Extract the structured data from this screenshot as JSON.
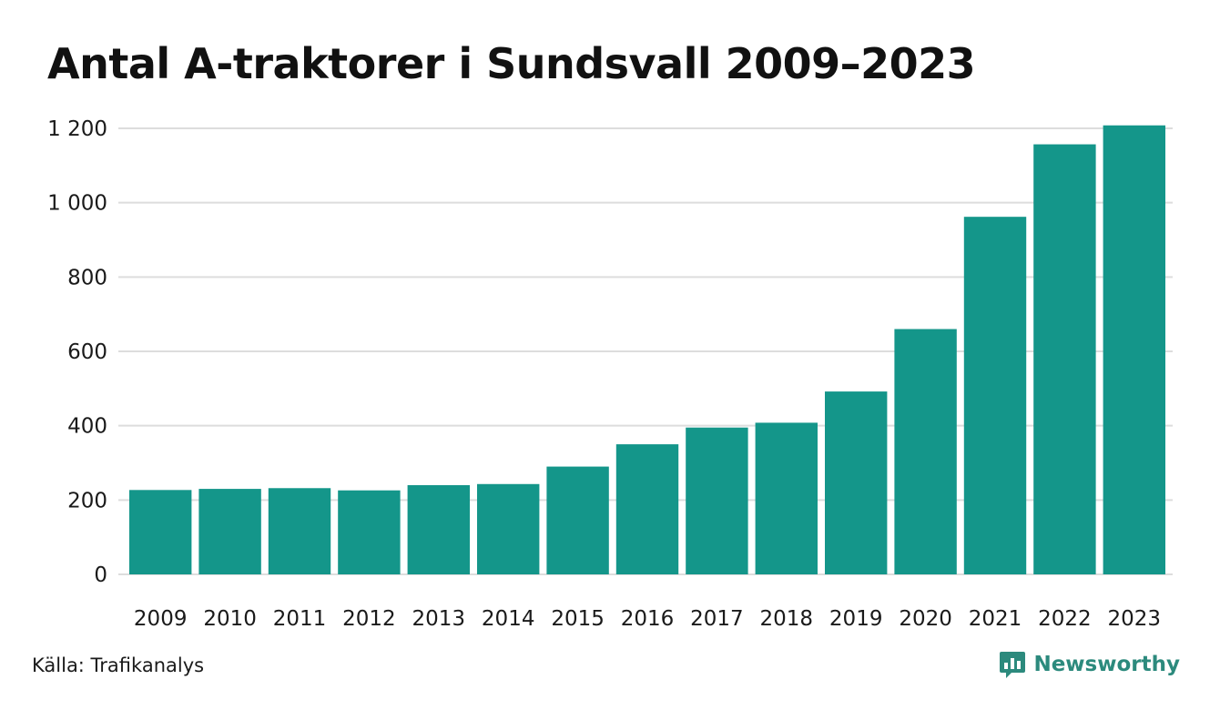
{
  "chart_data": {
    "type": "bar",
    "title": "Antal A-traktorer i Sundsvall 2009–2023",
    "xlabel": "",
    "ylabel": "",
    "categories": [
      "2009",
      "2010",
      "2011",
      "2012",
      "2013",
      "2014",
      "2015",
      "2016",
      "2017",
      "2018",
      "2019",
      "2020",
      "2021",
      "2022",
      "2023"
    ],
    "values": [
      227,
      230,
      232,
      226,
      240,
      243,
      290,
      350,
      395,
      408,
      492,
      660,
      962,
      1157,
      1208
    ],
    "ylim": [
      0,
      1200
    ],
    "yticks": [
      0,
      200,
      400,
      600,
      800,
      1000,
      1200
    ],
    "ytick_labels": [
      "0",
      "200",
      "400",
      "600",
      "800",
      "1 000",
      "1 200"
    ],
    "grid": true,
    "bar_color": "#14968a",
    "grid_color": "#dddddd"
  },
  "source": "Källa: Trafikanalys",
  "brand": {
    "name": "Newsworthy",
    "icon": "newsworthy-logo-icon",
    "color": "#2c8a7d"
  }
}
